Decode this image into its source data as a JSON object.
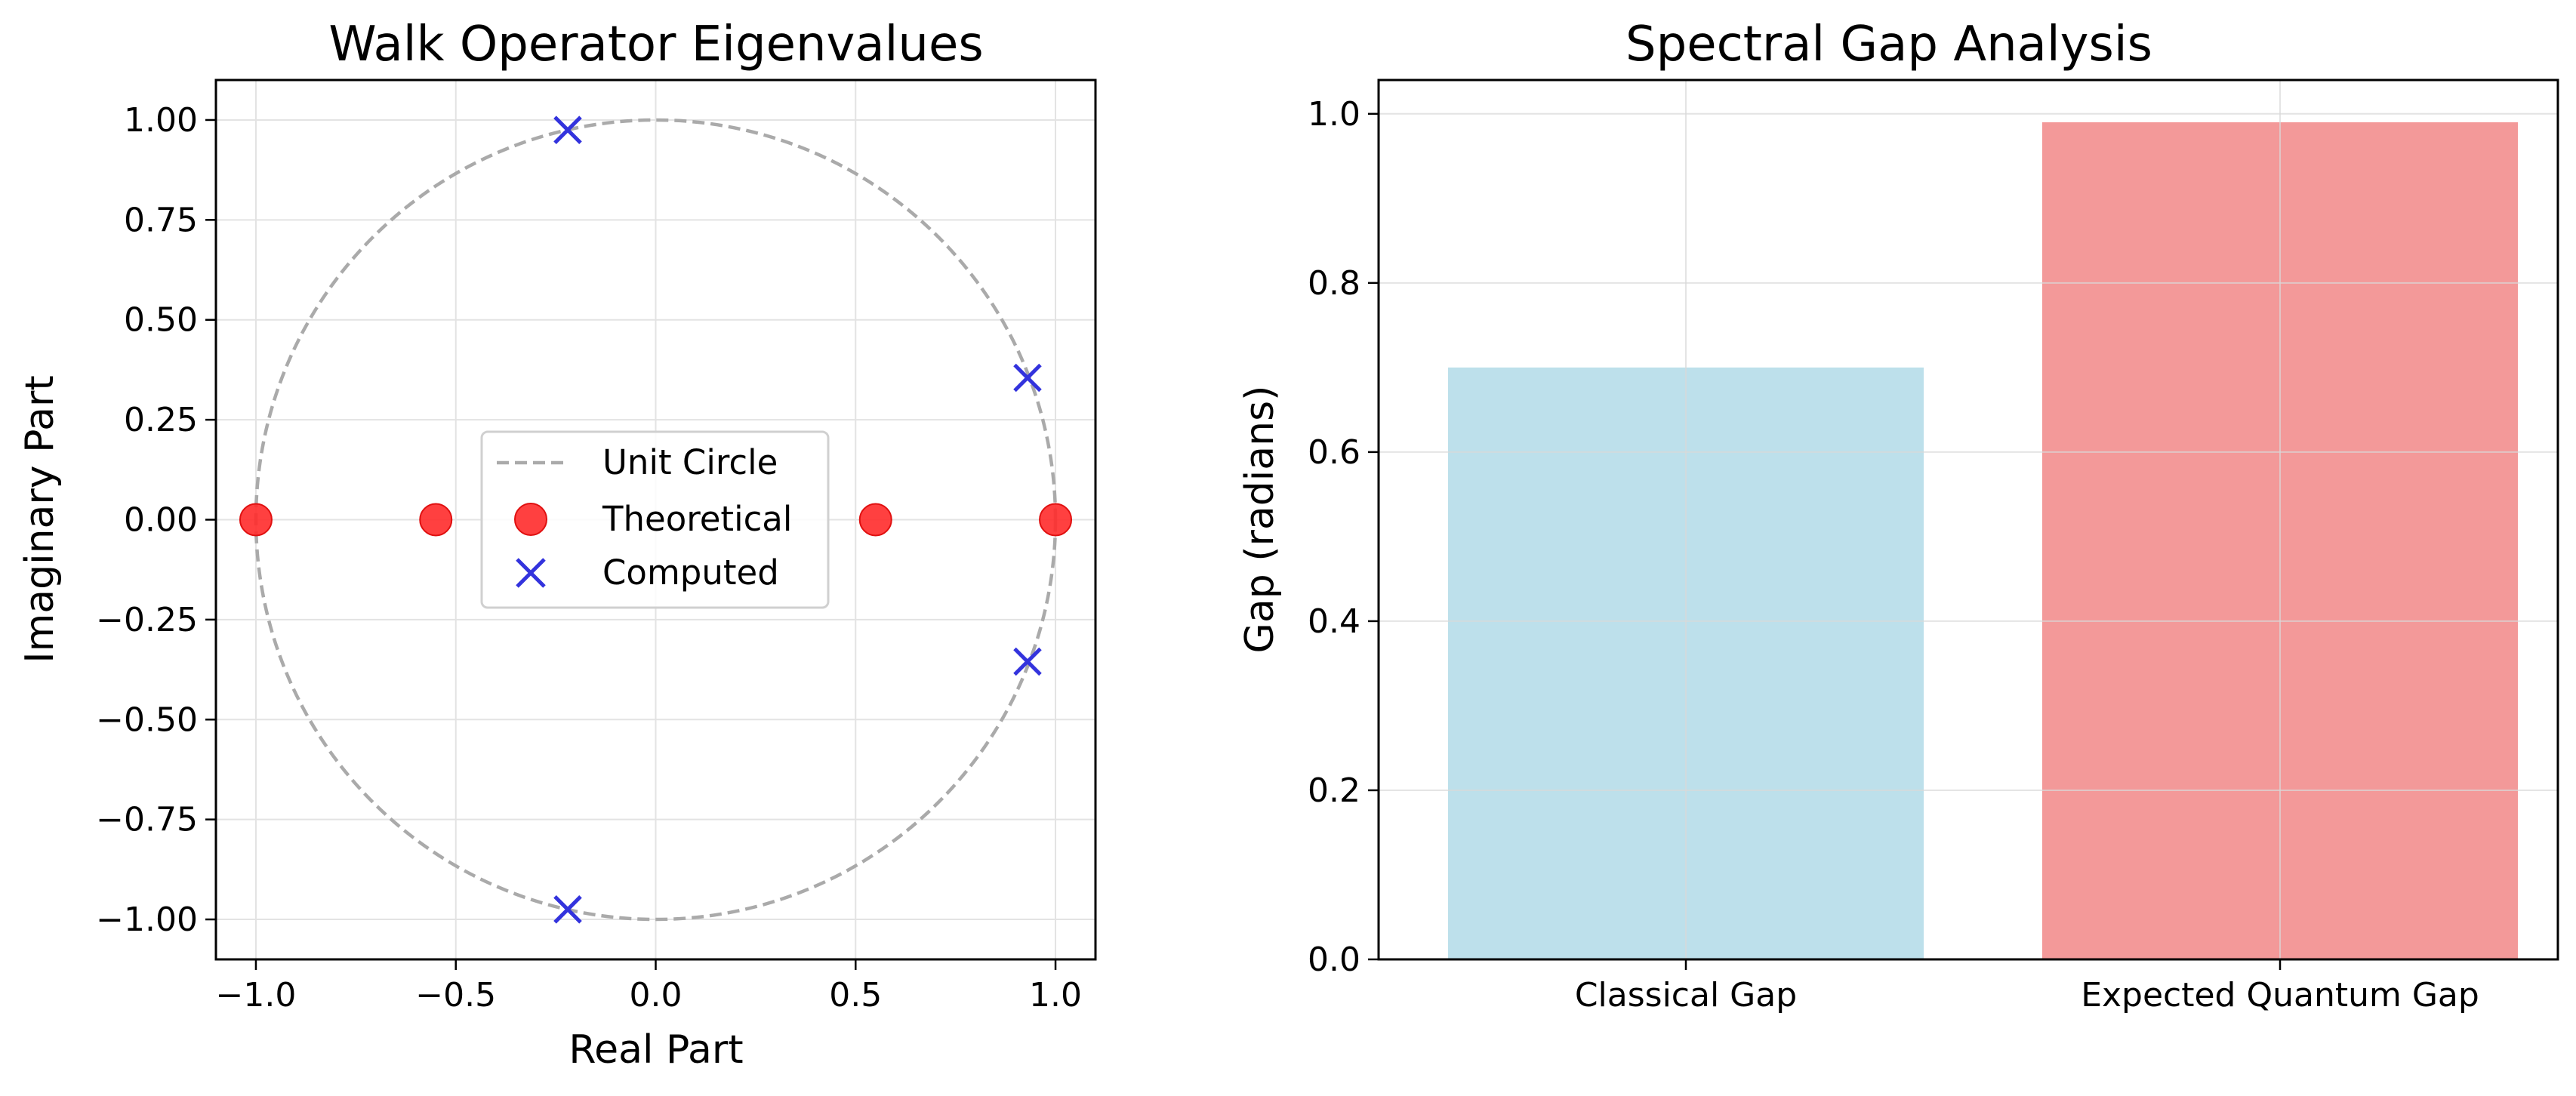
{
  "chart_data": [
    {
      "type": "scatter",
      "title": "Walk Operator Eigenvalues",
      "xlabel": "Real Part",
      "ylabel": "Imaginary Part",
      "xlim": [
        -1.1,
        1.1
      ],
      "ylim": [
        -1.1,
        1.1
      ],
      "xticks": [
        -1.0,
        -0.5,
        0.0,
        0.5,
        1.0
      ],
      "xtick_labels": [
        "−1.0",
        "−0.5",
        "0.0",
        "0.5",
        "1.0"
      ],
      "yticks": [
        1.0,
        0.75,
        0.5,
        0.25,
        0.0,
        -0.25,
        -0.5,
        -0.75,
        -1.0
      ],
      "ytick_labels": [
        "1.00",
        "0.75",
        "0.50",
        "0.25",
        "0.00",
        "−0.25",
        "−0.50",
        "−0.75",
        "−1.00"
      ],
      "grid": true,
      "legend_position": "center",
      "series": [
        {
          "name": "Unit Circle",
          "kind": "circle",
          "radius": 1.0,
          "style": "dashed",
          "color": "#aaaaaa"
        },
        {
          "name": "Theoretical",
          "kind": "points",
          "marker": "circle",
          "color": "#ff2b2b",
          "x": [
            -1.0,
            -0.55,
            0.55,
            1.0
          ],
          "y": [
            0.0,
            0.0,
            0.0,
            0.0
          ]
        },
        {
          "name": "Computed",
          "kind": "points",
          "marker": "x",
          "color": "#3333dd",
          "x": [
            -0.22,
            -0.22,
            0.93,
            0.93
          ],
          "y": [
            0.975,
            -0.975,
            0.355,
            -0.355
          ]
        }
      ]
    },
    {
      "type": "bar",
      "title": "Spectral Gap Analysis",
      "xlabel": "",
      "ylabel": "Gap (radians)",
      "categories": [
        "Classical Gap",
        "Expected Quantum Gap"
      ],
      "values": [
        0.7,
        0.99
      ],
      "colors": [
        "#add8e6",
        "#f08080"
      ],
      "ylim": [
        0.0,
        1.04
      ],
      "yticks": [
        0.0,
        0.2,
        0.4,
        0.6,
        0.8,
        1.0
      ],
      "ytick_labels": [
        "0.0",
        "0.2",
        "0.4",
        "0.6",
        "0.8",
        "1.0"
      ],
      "grid": true
    }
  ]
}
